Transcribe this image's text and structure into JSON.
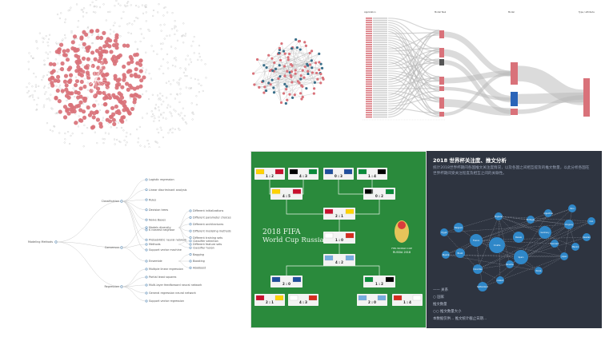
{
  "tree": {
    "root": "Modeling Methods",
    "groups": [
      {
        "name": "Classification",
        "items": [
          "Logistic regression",
          "Linear discriminant analysis",
          "Rules",
          "Decision trees",
          "Naive Bayes",
          "K nearest neighbor",
          "Probabilistic neural network",
          "Support vector machine"
        ]
      },
      {
        "name": "Consensus",
        "items": [
          "Models diversity",
          "Methods",
          "Ensemble"
        ]
      },
      {
        "name": "Regression",
        "items": [
          "Multiple linear regression",
          "Partial least squares",
          "Multi-layer feedforward neural network",
          "General regression neural network",
          "Support vector regression"
        ]
      }
    ],
    "subitems": {
      "Models diversity": [
        "Different initializations",
        "Different parameter choices",
        "Different architectures",
        "Different modeling methods",
        "Different training sets",
        "Different feature sets"
      ],
      "Methods": [
        "Classifier selection",
        "Classifier fusion"
      ],
      "Ensemble": [
        "Bagging",
        "Boosting",
        "AdaBoost"
      ]
    }
  },
  "worldcup": {
    "title_line1": "2018 FIFA",
    "title_line2": "World Cup Russia",
    "logo_line1": "FIFA WORLD CUP",
    "logo_line2": "RUSSIA 2018",
    "matches": [
      {
        "round": "r16",
        "score": "1 : 2"
      },
      {
        "round": "r16",
        "score": "4 : 3"
      },
      {
        "round": "r16",
        "score": "0 : 3"
      },
      {
        "round": "r16",
        "score": "1 : 4"
      },
      {
        "round": "r16",
        "score": "2 : 1"
      },
      {
        "round": "r16",
        "score": "4 : 3"
      },
      {
        "round": "r16",
        "score": "2 : 0"
      },
      {
        "round": "r16",
        "score": "1 : 4"
      },
      {
        "round": "qf",
        "score": "4 : 5"
      },
      {
        "round": "qf",
        "score": "0 : 2"
      },
      {
        "round": "qf",
        "score": "2 : 0"
      },
      {
        "round": "qf",
        "score": "1 : 2"
      },
      {
        "round": "sf",
        "score": "2 : 1"
      },
      {
        "round": "sf",
        "score": "1 : 0"
      },
      {
        "round": "final",
        "score": "4 : 2"
      }
    ],
    "colors": {
      "pitch": "#2a8a3c",
      "line": "#e7f3e7"
    }
  },
  "dark": {
    "title": "2018 世界杯关注度、推文分析",
    "subtitle": "统计2018世界杯期间各国推文关注度情况，以及各国之间相互提及的推文数量，以此分析各国在世界杯期间受关注程度及相互之间的关联性。",
    "legend": [
      "—— 关系",
      "○ 国家",
      "推文数量",
      "○○ 推文数量大小",
      "本数据仅供…  推文统计截止日期…"
    ],
    "nodes": [
      "France",
      "Croatia",
      "Belgium",
      "England",
      "Brazil",
      "Russia",
      "Spain",
      "Germany",
      "Argentina",
      "Uruguay",
      "Sweden",
      "Mexico",
      "Japan",
      "Portugal",
      "Denmark",
      "Colombia",
      "Switzerland",
      "Iceland",
      "Nigeria",
      "Egypt",
      "Peru",
      "Iran",
      "Korea",
      "Panama"
    ],
    "colors": {
      "bg": "#2e3440",
      "node": "#2f87c8",
      "edge": "#cfd6e2"
    }
  },
  "sankey": {
    "headers": [
      "Application",
      "Model Task",
      "Model",
      "Type / attribute"
    ],
    "colors": {
      "bar": "#d9727a",
      "blue": "#2a64b8",
      "dark": "#555555"
    }
  },
  "force": {
    "colors": {
      "node": "#d9727a",
      "outer": "#c8c8c8"
    }
  },
  "network": {
    "colors": {
      "a": "#d9727a",
      "b": "#3a6f8a"
    }
  }
}
